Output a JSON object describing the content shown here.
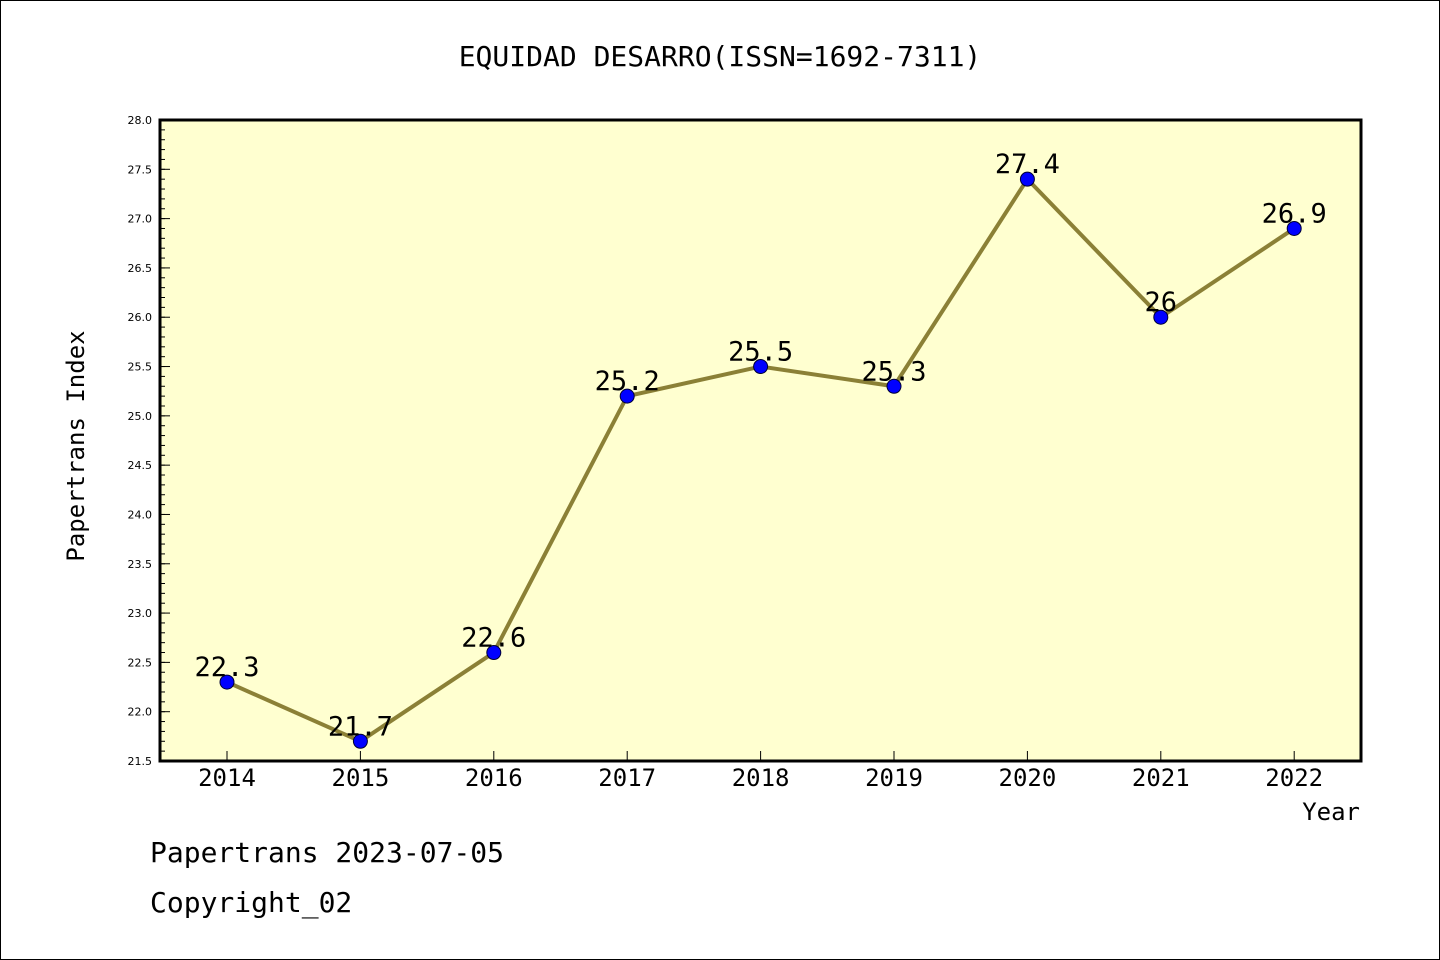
{
  "chart_data": {
    "type": "line",
    "title": "EQUIDAD DESARRO(ISSN=1692-7311)",
    "xlabel": "Year",
    "ylabel": "Papertrans Index",
    "categories": [
      "2014",
      "2015",
      "2016",
      "2017",
      "2018",
      "2019",
      "2020",
      "2021",
      "2022"
    ],
    "series": [
      {
        "values": [
          22.3,
          21.7,
          22.6,
          25.2,
          25.5,
          25.3,
          27.4,
          26,
          26.9
        ]
      }
    ],
    "data_labels": [
      "22.3",
      "21.7",
      "22.6",
      "25.2",
      "25.5",
      "25.3",
      "27.4",
      "26",
      "26.9"
    ],
    "ylim": [
      21.5,
      28.0
    ],
    "yticks": [
      "21.5",
      "22.0",
      "22.5",
      "23.0",
      "23.5",
      "24.0",
      "24.5",
      "25.0",
      "25.5",
      "26.0",
      "26.5",
      "27.0",
      "27.5",
      "28.0"
    ],
    "grid": false,
    "colors": {
      "plot_bg": "#ffffd0",
      "line": "#8b8036",
      "marker": "#0000ff"
    }
  },
  "footer": {
    "line1": "Papertrans 2023-07-05",
    "line2": "Copyright_02"
  }
}
